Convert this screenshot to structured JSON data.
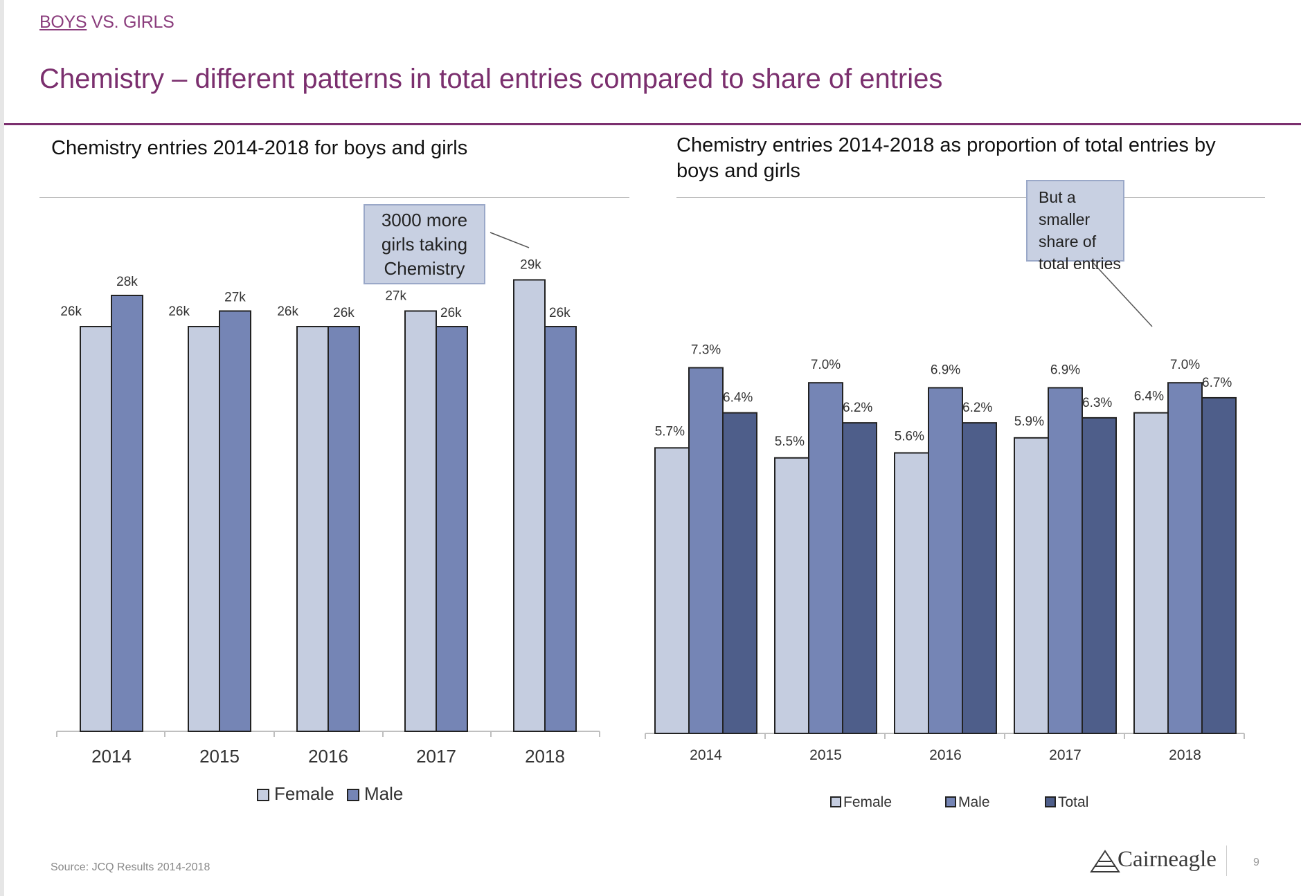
{
  "header": {
    "section_boys": "BOYS",
    "section_rest": " VS. GIRLS",
    "title": "Chemistry – different patterns in total entries compared to share of entries"
  },
  "colors": {
    "female": "#c5cde0",
    "male": "#7585b5",
    "total": "#4e5e8a",
    "accent": "#7b2f6e"
  },
  "chart_data": [
    {
      "type": "bar",
      "title": "Chemistry entries 2014-2018 for boys and girls",
      "categories": [
        "2014",
        "2015",
        "2016",
        "2017",
        "2018"
      ],
      "series": [
        {
          "name": "Female",
          "values": [
            26,
            26,
            26,
            27,
            29
          ],
          "labels": [
            "26k",
            "26k",
            "26k",
            "27k",
            "29k"
          ]
        },
        {
          "name": "Male",
          "values": [
            28,
            27,
            26,
            26,
            26
          ],
          "labels": [
            "28k",
            "27k",
            "26k",
            "26k",
            "26k"
          ]
        }
      ],
      "legend_position": "bottom",
      "grid": false,
      "annotation": {
        "line1": "3000 more",
        "line2": "girls taking",
        "line3": "Chemistry"
      }
    },
    {
      "type": "bar",
      "title": "Chemistry entries 2014-2018 as proportion of total entries by boys and girls",
      "categories": [
        "2014",
        "2015",
        "2016",
        "2017",
        "2018"
      ],
      "series": [
        {
          "name": "Female",
          "values": [
            5.7,
            5.5,
            5.6,
            5.9,
            6.4
          ],
          "labels": [
            "5.7%",
            "5.5%",
            "5.6%",
            "5.9%",
            "6.4%"
          ]
        },
        {
          "name": "Male",
          "values": [
            7.3,
            7.0,
            6.9,
            6.9,
            7.0
          ],
          "labels": [
            "7.3%",
            "7.0%",
            "6.9%",
            "6.9%",
            "7.0%"
          ]
        },
        {
          "name": "Total",
          "values": [
            6.4,
            6.2,
            6.2,
            6.3,
            6.7
          ],
          "labels": [
            "6.4%",
            "6.2%",
            "6.2%",
            "6.3%",
            "6.7%"
          ]
        }
      ],
      "legend_position": "bottom",
      "grid": false,
      "annotation": {
        "line1": "But a smaller",
        "line2": "share of",
        "line3": "total entries"
      }
    }
  ],
  "footer": {
    "source": "Source: JCQ Results 2014-2018",
    "logo": "Cairneagle",
    "page": "9"
  }
}
